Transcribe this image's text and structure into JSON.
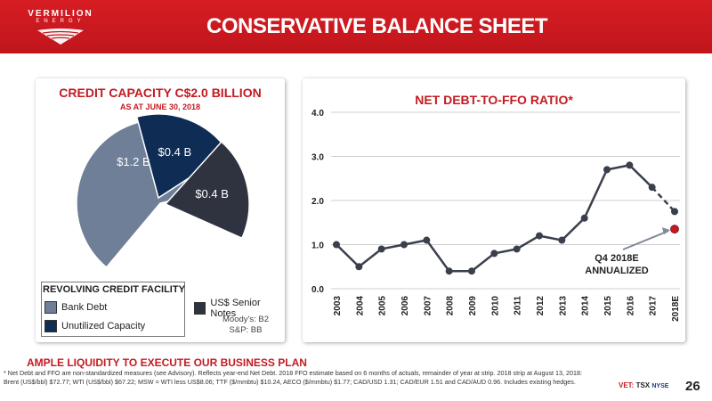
{
  "brand": {
    "name_line1": "VERMILION",
    "name_line2": "ENERGY",
    "accent": "#c41a21"
  },
  "slide": {
    "title": "CONSERVATIVE BALANCE SHEET",
    "page_number": "26"
  },
  "credit_panel": {
    "title": "CREDIT CAPACITY C$2.0 BILLION",
    "subtitle": "AS AT JUNE 30, 2018",
    "legend_title": "REVOLVING CREDIT FACILITY",
    "legend": [
      {
        "label": "Bank Debt",
        "color": "#6f7f97"
      },
      {
        "label": "Unutilized Capacity",
        "color": "#0e2c54"
      }
    ],
    "senior_notes": {
      "label": "US$ Senior Notes",
      "color": "#2f3340"
    },
    "rating_moody": "Moody's: B2",
    "rating_sp": "S&P: BB"
  },
  "ratio_panel": {
    "annotation_line1": "Q4 2018E",
    "annotation_line2": "ANNUALIZED"
  },
  "chart_data": [
    {
      "type": "pie",
      "title": "CREDIT CAPACITY C$2.0 BILLION",
      "subtitle": "AS AT JUNE 30, 2018",
      "slices": [
        {
          "label": "$1.2 B",
          "value": 1.2,
          "category": "Bank Debt",
          "color": "#6f7f97"
        },
        {
          "label": "$0.4 B",
          "value": 0.4,
          "category": "Unutilized Capacity",
          "color": "#0e2c54"
        },
        {
          "label": "$0.4 B",
          "value": 0.4,
          "category": "US$ Senior Notes",
          "color": "#2f3340"
        }
      ]
    },
    {
      "type": "line",
      "title": "NET DEBT-TO-FFO RATIO*",
      "categories": [
        "2003",
        "2004",
        "2005",
        "2006",
        "2007",
        "2008",
        "2009",
        "2010",
        "2011",
        "2012",
        "2013",
        "2014",
        "2015",
        "2016",
        "2017",
        "2018E"
      ],
      "values": [
        1.0,
        0.5,
        0.9,
        1.0,
        1.1,
        0.4,
        0.4,
        0.8,
        0.9,
        1.2,
        1.1,
        1.6,
        2.7,
        2.8,
        2.3,
        1.75
      ],
      "forecast_point": {
        "category": "2018E",
        "value": 1.35,
        "label": "Q4 2018E ANNUALIZED"
      },
      "yticks": [
        "0.0",
        "1.0",
        "2.0",
        "3.0",
        "4.0"
      ],
      "ylim": [
        0,
        4
      ],
      "grid": true,
      "line_color": "#3a3f4c",
      "forecast_color": "#c41a21"
    }
  ],
  "footer": {
    "tagline": "AMPLE LIQUIDITY TO EXECUTE OUR BUSINESS PLAN",
    "footnote_line1": "* Net Debt and FFO are non-standardized measures (see Advisory).  Reflects year-end Net Debt. 2018 FFO estimate based on 6 months of actuals, remainder of year at strip. 2018 strip at August 13, 2018:",
    "footnote_line2": "Brent (US$/bbl) $72.77; WTI (US$/bbl) $67.22; MSW = WTI less US$8.06; TTF ($/mmbtu) $10.24, AECO ($/mmbtu) $1.77; CAD/USD 1.31; CAD/EUR 1.51 and CAD/AUD 0.96.  Includes existing hedges.",
    "exchange_vet": "VET:",
    "exchange_tsx": "TSX",
    "exchange_nyse": "NYSE"
  }
}
